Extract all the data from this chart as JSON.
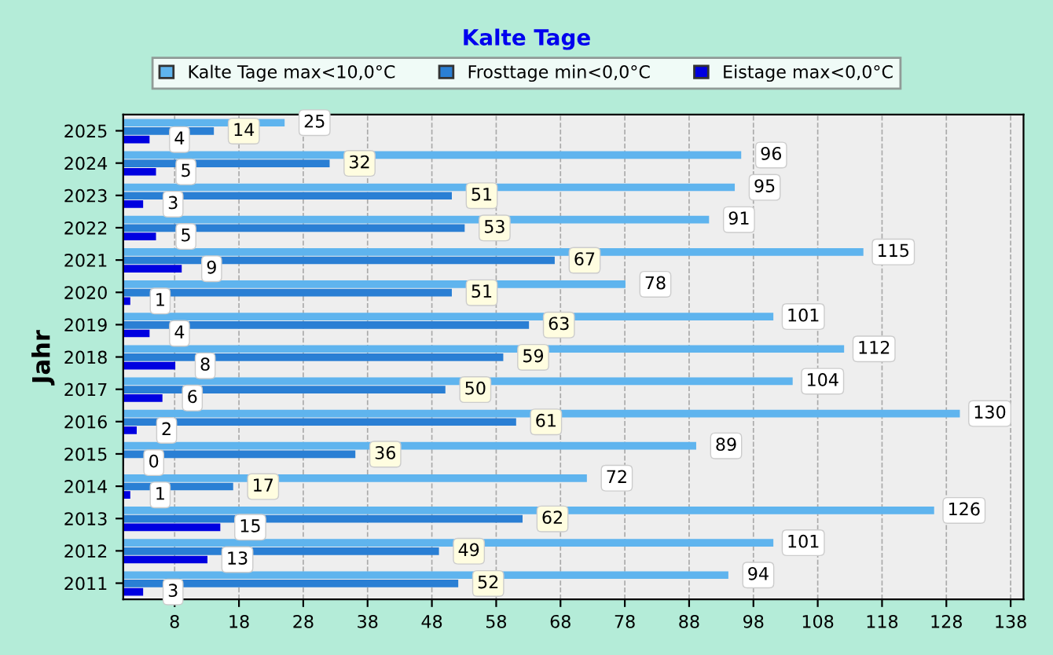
{
  "chart_data": {
    "type": "bar",
    "orientation": "horizontal",
    "title": "Kalte Tage",
    "ylabel": "Jahr",
    "categories": [
      "2025",
      "2024",
      "2023",
      "2022",
      "2021",
      "2020",
      "2019",
      "2018",
      "2017",
      "2016",
      "2015",
      "2014",
      "2013",
      "2012",
      "2011"
    ],
    "series": [
      {
        "name": "Kalte Tage max<10,0°C",
        "color": "#5fb4ee",
        "values": [
          25,
          96,
          95,
          91,
          115,
          78,
          101,
          112,
          104,
          130,
          89,
          72,
          126,
          101,
          94
        ]
      },
      {
        "name": "Frosttage min<0,0°C",
        "color": "#2a7fd4",
        "values": [
          14,
          32,
          51,
          53,
          67,
          51,
          63,
          59,
          50,
          61,
          36,
          17,
          62,
          49,
          52
        ]
      },
      {
        "name": "Eistage max<0,0°C",
        "color": "#0000e0",
        "values": [
          4,
          5,
          3,
          5,
          9,
          1,
          4,
          8,
          6,
          2,
          0,
          1,
          15,
          13,
          3
        ]
      }
    ],
    "xlim": [
      0,
      140
    ],
    "xticks": [
      8,
      18,
      28,
      38,
      48,
      58,
      68,
      78,
      88,
      98,
      108,
      118,
      128,
      138
    ],
    "grid": "x",
    "legend": "top",
    "data_labels": true
  }
}
